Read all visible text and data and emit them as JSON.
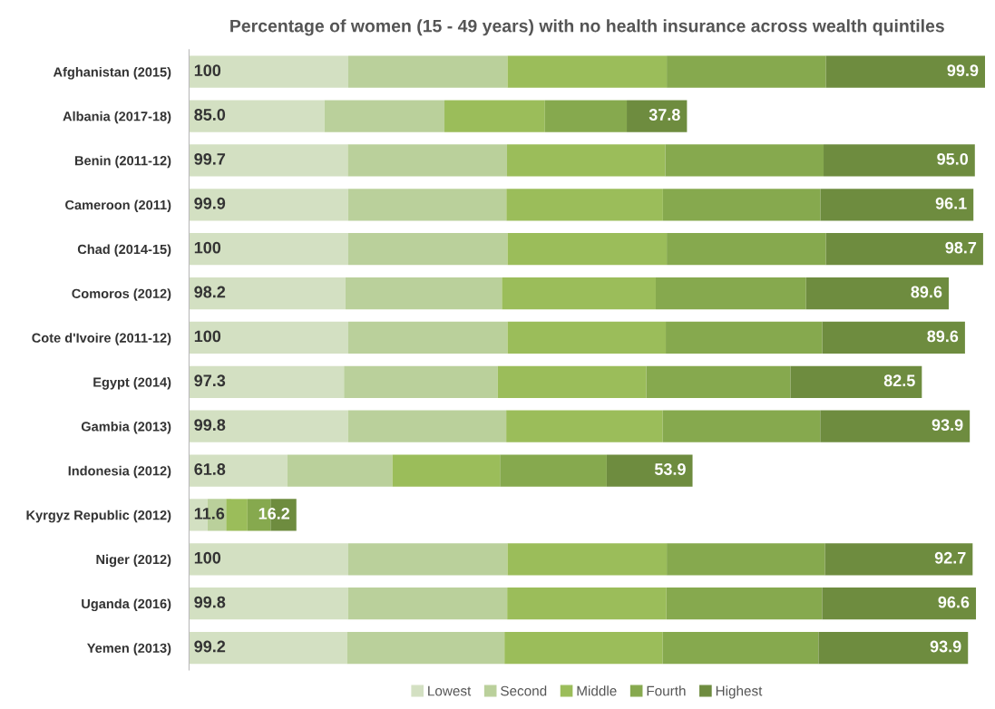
{
  "chart_data": {
    "type": "bar",
    "orientation": "horizontal",
    "stacked": true,
    "title": "Percentage of women (15 - 49 years) with no health insurance across wealth quintiles",
    "categories": [
      "Afghanistan (2015)",
      "Albania (2017-18)",
      "Benin (2011-12)",
      "Cameroon (2011)",
      "Chad (2014-15)",
      "Comoros (2012)",
      "Cote d'Ivoire (2011-12)",
      "Egypt (2014)",
      "Gambia (2013)",
      "Indonesia (2012)",
      "Kyrgyz Republic (2012)",
      "Niger (2012)",
      "Uganda (2016)",
      "Yemen (2013)"
    ],
    "series": [
      {
        "name": "Lowest",
        "color": "#d3e0c2",
        "values": [
          100,
          85.0,
          99.7,
          99.9,
          100,
          98.2,
          100,
          97.3,
          99.8,
          61.8,
          11.6,
          100,
          99.8,
          99.2
        ],
        "value_labels": [
          "100",
          "85.0",
          "99.7",
          "99.9",
          "100",
          "98.2",
          "100",
          "97.3",
          "99.8",
          "61.8",
          "11.6",
          "100",
          "99.8",
          "99.2"
        ]
      },
      {
        "name": "Second",
        "color": "#bad09b",
        "values": [
          100,
          75.4,
          100,
          99.4,
          100,
          98.3,
          100,
          96.6,
          99.4,
          65.9,
          11.7,
          100,
          100,
          98.9
        ]
      },
      {
        "name": "Middle",
        "color": "#9bbd5a",
        "values": [
          100,
          63.1,
          99.4,
          98.3,
          100,
          96.6,
          99.4,
          93.3,
          98.3,
          67.6,
          13.4,
          100,
          100,
          99.4
        ]
      },
      {
        "name": "Fourth",
        "color": "#86a94e",
        "values": [
          100,
          51.4,
          99.4,
          98.9,
          100,
          94.4,
          98.3,
          90.5,
          98.9,
          67.0,
          14.5,
          99.4,
          97.8,
          97.8
        ]
      },
      {
        "name": "Highest",
        "color": "#6e8c3f",
        "values": [
          99.9,
          37.8,
          95.0,
          96.1,
          98.7,
          89.6,
          89.6,
          82.5,
          93.9,
          53.9,
          16.2,
          92.7,
          96.6,
          93.9
        ],
        "value_labels": [
          "99.9",
          "37.8",
          "95.0",
          "96.1",
          "98.7",
          "89.6",
          "89.6",
          "82.5",
          "93.9",
          "53.9",
          "16.2",
          "92.7",
          "96.6",
          "93.9"
        ]
      }
    ],
    "legend": "bottom",
    "grid": false
  }
}
